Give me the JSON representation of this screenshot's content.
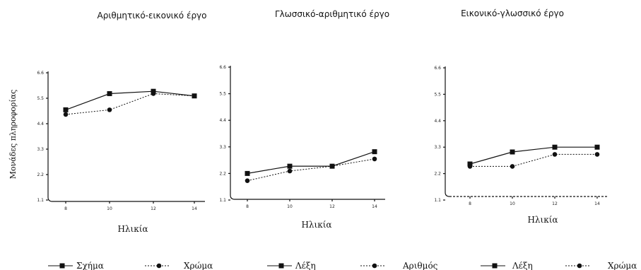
{
  "figure": {
    "ylabel": "Μονάδες πληροφορίας"
  },
  "chart_data": [
    {
      "type": "line",
      "title": "Αριθμητικό-εικονικό έργο",
      "xlabel": "Ηλικία",
      "ylabel": "Μονάδες πληροφορίας",
      "x": [
        "8",
        "10",
        "12",
        "14"
      ],
      "y_ticks": [
        "1.1",
        "2.2",
        "3.3",
        "4.4",
        "5.5",
        "6.6"
      ],
      "ylim": [
        1.1,
        6.6
      ],
      "series": [
        {
          "name": "Σχήμα",
          "marker": "square",
          "style": "solid",
          "values": [
            5.0,
            5.7,
            5.8,
            5.6
          ]
        },
        {
          "name": "Χρώμα",
          "marker": "circle",
          "style": "dotted",
          "values": [
            4.8,
            5.0,
            5.7,
            5.6
          ]
        }
      ]
    },
    {
      "type": "line",
      "title": "Γλωσσικό-αριθμητικό έργο",
      "xlabel": "Ηλικία",
      "ylabel": "",
      "x": [
        "8",
        "10",
        "12",
        "14"
      ],
      "y_ticks": [
        "1.1",
        "2.2",
        "3.3",
        "4.4",
        "5.5",
        "6.6"
      ],
      "ylim": [
        1.1,
        6.6
      ],
      "series": [
        {
          "name": "Λέξη",
          "marker": "square",
          "style": "solid",
          "values": [
            2.2,
            2.5,
            2.5,
            3.1
          ]
        },
        {
          "name": "Αριθμός",
          "marker": "circle",
          "style": "dotted",
          "values": [
            1.9,
            2.3,
            2.5,
            2.8
          ]
        }
      ]
    },
    {
      "type": "line",
      "title": "Εικονικό-γλωσσικό έργο",
      "xlabel": "Ηλικία",
      "ylabel": "",
      "x": [
        "8",
        "10",
        "12",
        "14"
      ],
      "y_ticks": [
        "1.1",
        "2.2",
        "3.3",
        "4.4",
        "5.5",
        "6.6"
      ],
      "ylim": [
        1.1,
        6.6
      ],
      "series": [
        {
          "name": "Λέξη",
          "marker": "square",
          "style": "solid",
          "values": [
            2.6,
            3.1,
            3.3,
            3.3
          ]
        },
        {
          "name": "Χρώμα",
          "marker": "circle",
          "style": "dotted",
          "values": [
            2.5,
            2.5,
            3.0,
            3.0
          ]
        }
      ]
    }
  ]
}
